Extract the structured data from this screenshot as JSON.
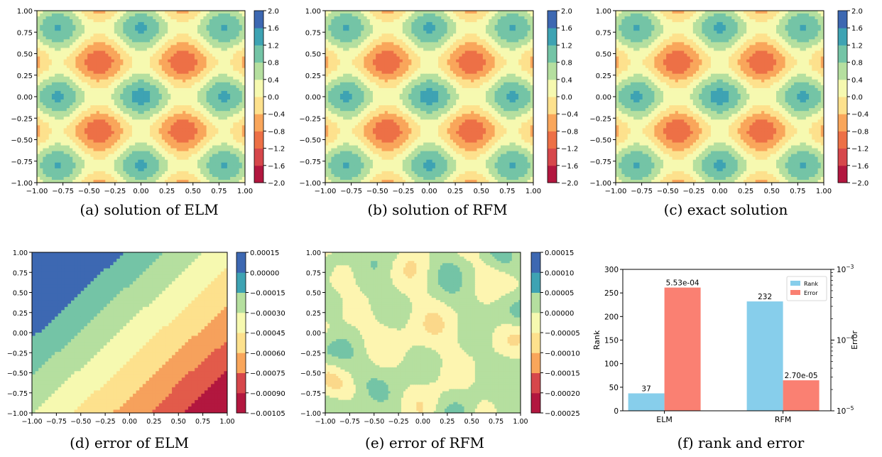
{
  "captions": {
    "a": "(a) solution of ELM",
    "b": "(b) solution of RFM",
    "c": "(c) exact solution",
    "d": "(d) error of ELM",
    "e": "(e) error of RFM",
    "f": "(f) rank and error"
  },
  "chart_data": [
    {
      "type": "heatmap",
      "caption": "(a) solution of ELM",
      "xlim": [
        -1,
        1
      ],
      "ylim": [
        -1,
        1
      ],
      "xticks": [
        "-1.00",
        "-0.75",
        "-0.50",
        "-0.25",
        "0.00",
        "0.25",
        "0.50",
        "0.75",
        "1.00"
      ],
      "yticks": [
        "-1.00",
        "-0.75",
        "-0.50",
        "-0.25",
        "0.00",
        "0.25",
        "0.50",
        "0.75",
        "1.00"
      ],
      "colorbar_ticks": [
        "-2.0",
        "-1.6",
        "-1.2",
        "-0.8",
        "-0.4",
        "0.0",
        "0.4",
        "0.8",
        "1.2",
        "1.6",
        "2.0"
      ],
      "colormap": "Spectral"
    },
    {
      "type": "heatmap",
      "caption": "(b) solution of RFM",
      "xlim": [
        -1,
        1
      ],
      "ylim": [
        -1,
        1
      ],
      "xticks": [
        "-1.00",
        "-0.75",
        "-0.50",
        "-0.25",
        "0.00",
        "0.25",
        "0.50",
        "0.75",
        "1.00"
      ],
      "yticks": [
        "-1.00",
        "-0.75",
        "-0.50",
        "-0.25",
        "0.00",
        "0.25",
        "0.50",
        "0.75",
        "1.00"
      ],
      "colorbar_ticks": [
        "-2.0",
        "-1.6",
        "-1.2",
        "-0.8",
        "-0.4",
        "0.0",
        "0.4",
        "0.8",
        "1.2",
        "1.6",
        "2.0"
      ],
      "colormap": "Spectral"
    },
    {
      "type": "heatmap",
      "caption": "(c) exact solution",
      "xlim": [
        -1,
        1
      ],
      "ylim": [
        -1,
        1
      ],
      "xticks": [
        "-1.00",
        "-0.75",
        "-0.50",
        "-0.25",
        "0.00",
        "0.25",
        "0.50",
        "0.75",
        "1.00"
      ],
      "yticks": [
        "-1.00",
        "-0.75",
        "-0.50",
        "-0.25",
        "0.00",
        "0.25",
        "0.50",
        "0.75",
        "1.00"
      ],
      "colorbar_ticks": [
        "-2.0",
        "-1.6",
        "-1.2",
        "-0.8",
        "-0.4",
        "0.0",
        "0.4",
        "0.8",
        "1.2",
        "1.6",
        "2.0"
      ],
      "colormap": "Spectral"
    },
    {
      "type": "heatmap",
      "caption": "(d) error of ELM",
      "xlim": [
        -1,
        1
      ],
      "ylim": [
        -1,
        1
      ],
      "xticks": [
        "-1.00",
        "-0.75",
        "-0.50",
        "-0.25",
        "0.00",
        "0.25",
        "0.50",
        "0.75",
        "1.00"
      ],
      "yticks": [
        "-1.00",
        "-0.75",
        "-0.50",
        "-0.25",
        "0.00",
        "0.25",
        "0.50",
        "0.75",
        "1.00"
      ],
      "colorbar_ticks": [
        "-0.00105",
        "-0.00090",
        "-0.00075",
        "-0.00060",
        "-0.00045",
        "-0.00030",
        "-0.00015",
        "0.00000",
        "0.00015"
      ],
      "colormap": "Spectral"
    },
    {
      "type": "heatmap",
      "caption": "(e) error of RFM",
      "xlim": [
        -1,
        1
      ],
      "ylim": [
        -1,
        1
      ],
      "xticks": [
        "-1.00",
        "-0.75",
        "-0.50",
        "-0.25",
        "0.00",
        "0.25",
        "0.50",
        "0.75",
        "1.00"
      ],
      "yticks": [
        "-1.00",
        "-0.75",
        "-0.50",
        "-0.25",
        "0.00",
        "0.25",
        "0.50",
        "0.75",
        "1.00"
      ],
      "colorbar_ticks": [
        "-0.00025",
        "-0.00020",
        "-0.00015",
        "-0.00010",
        "-0.00005",
        "0.00000",
        "0.00005",
        "0.00010",
        "0.00015"
      ],
      "colormap": "Spectral"
    },
    {
      "type": "bar",
      "caption": "(f) rank and error",
      "categories": [
        "ELM",
        "RFM"
      ],
      "ylabel": "Rank",
      "y2label": "Error",
      "ylim": [
        0,
        300
      ],
      "yticks": [
        "0",
        "50",
        "100",
        "150",
        "200",
        "250",
        "300"
      ],
      "y2scale": "log",
      "y2lim": [
        1e-05,
        0.001
      ],
      "series": [
        {
          "name": "Rank",
          "axis": "left",
          "color": "#87ceeb",
          "values": [
            37,
            232
          ],
          "labels": [
            "37",
            "232"
          ]
        },
        {
          "name": "Error",
          "axis": "right",
          "color": "#fa8072",
          "values": [
            0.000553,
            2.7e-05
          ],
          "labels": [
            "5.53e-04",
            "2.70e-05"
          ]
        }
      ],
      "legend": "top-right"
    }
  ]
}
